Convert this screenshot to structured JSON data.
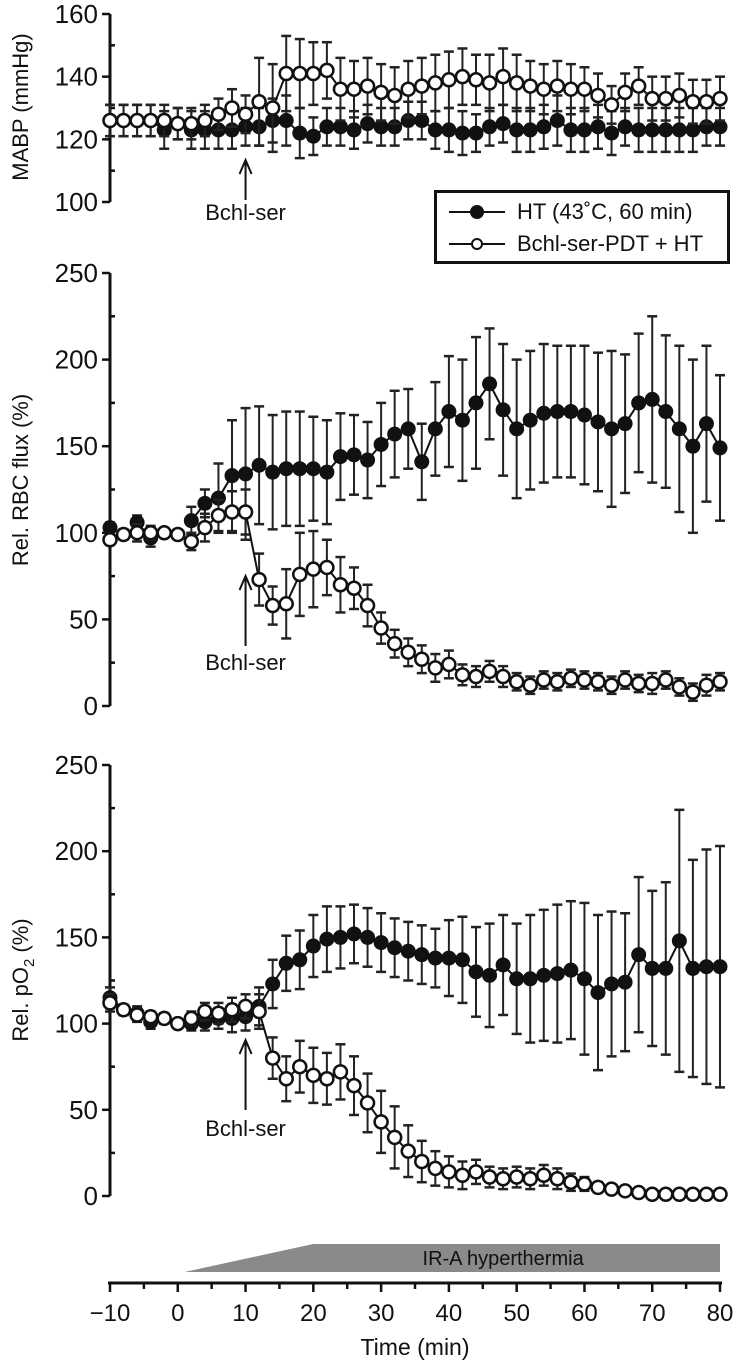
{
  "figure": {
    "x_axis_label": "Time (min)",
    "x_ticks": [
      "−10",
      "0",
      "10",
      "20",
      "30",
      "40",
      "50",
      "60",
      "70",
      "80"
    ],
    "hyperthermia_bar_label": "IR-A hyperthermia",
    "annotation": "Bchl-ser",
    "legend": {
      "series_ht": "HT (43˚C, 60 min)",
      "series_pdt": "Bchl-ser-PDT + HT"
    },
    "panels": [
      {
        "ylabel": "MABP (mmHg)",
        "ticks": [
          "160",
          "140",
          "120",
          "100"
        ]
      },
      {
        "ylabel": "Rel. RBC flux (%)",
        "ticks": [
          "250",
          "200",
          "150",
          "100",
          "50",
          "0"
        ]
      },
      {
        "ylabel_main": "Rel. pO",
        "ylabel_sub": "2",
        "ylabel_tail": " (%)",
        "ticks": [
          "250",
          "200",
          "150",
          "100",
          "50",
          "0"
        ]
      }
    ]
  },
  "chart_data": [
    {
      "type": "line",
      "title": "",
      "xlabel": "Time (min)",
      "ylabel": "MABP (mmHg)",
      "ylim": [
        100,
        160
      ],
      "xlim": [
        -10,
        80
      ],
      "grid": false,
      "legend_position": "lower right",
      "annotations": [
        {
          "text": "Bchl-ser",
          "x": 10,
          "type": "arrow"
        }
      ],
      "x": [
        -10,
        -8,
        -6,
        -4,
        -2,
        0,
        2,
        4,
        6,
        8,
        10,
        12,
        14,
        16,
        18,
        20,
        22,
        24,
        26,
        28,
        30,
        32,
        34,
        36,
        38,
        40,
        42,
        44,
        46,
        48,
        50,
        52,
        54,
        56,
        58,
        60,
        62,
        64,
        66,
        68,
        70,
        72,
        74,
        76,
        78,
        80
      ],
      "series": [
        {
          "name": "HT (43˚C, 60 min)",
          "marker": "filled-circle",
          "values": [
            126,
            126,
            126,
            126,
            123,
            125,
            123,
            123,
            123,
            123,
            124,
            124,
            126,
            126,
            122,
            121,
            124,
            124,
            123,
            125,
            124,
            124,
            126,
            126,
            123,
            123,
            122,
            122,
            124,
            125,
            123,
            123,
            124,
            126,
            123,
            123,
            124,
            122,
            124,
            123,
            123,
            123,
            123,
            123,
            124,
            124
          ],
          "error": [
            5,
            5,
            5,
            5,
            6,
            5,
            6,
            6,
            6,
            6,
            6,
            6,
            7,
            8,
            8,
            6,
            6,
            6,
            6,
            6,
            6,
            6,
            6,
            6,
            6,
            7,
            7,
            6,
            6,
            6,
            7,
            7,
            7,
            8,
            7,
            7,
            7,
            7,
            6,
            7,
            7,
            7,
            7,
            7,
            6,
            6
          ]
        },
        {
          "name": "Bchl-ser-PDT + HT",
          "marker": "open-circle",
          "values": [
            126,
            126,
            126,
            126,
            126,
            125,
            125,
            126,
            128,
            130,
            128,
            132,
            130,
            141,
            141,
            141,
            142,
            136,
            136,
            137,
            135,
            134,
            136,
            137,
            138,
            139,
            140,
            139,
            138,
            140,
            138,
            137,
            136,
            137,
            136,
            136,
            134,
            131,
            135,
            137,
            133,
            133,
            134,
            132,
            132,
            133
          ],
          "error": [
            5,
            5,
            5,
            5,
            5,
            5,
            5,
            5,
            5,
            6,
            6,
            14,
            14,
            12,
            11,
            10,
            9,
            10,
            9,
            9,
            9,
            9,
            9,
            9,
            9,
            9,
            9,
            8,
            9,
            9,
            9,
            8,
            8,
            8,
            8,
            7,
            7,
            6,
            6,
            6,
            7,
            7,
            7,
            7,
            7,
            7
          ]
        }
      ]
    },
    {
      "type": "line",
      "title": "",
      "xlabel": "Time (min)",
      "ylabel": "Rel. RBC flux (%)",
      "ylim": [
        0,
        250
      ],
      "xlim": [
        -10,
        80
      ],
      "grid": false,
      "annotations": [
        {
          "text": "Bchl-ser",
          "x": 10,
          "type": "arrow"
        }
      ],
      "x": [
        -10,
        -8,
        -6,
        -4,
        -2,
        0,
        2,
        4,
        6,
        8,
        10,
        12,
        14,
        16,
        18,
        20,
        22,
        24,
        26,
        28,
        30,
        32,
        34,
        36,
        38,
        40,
        42,
        44,
        46,
        48,
        50,
        52,
        54,
        56,
        58,
        60,
        62,
        64,
        66,
        68,
        70,
        72,
        74,
        76,
        78,
        80
      ],
      "series": [
        {
          "name": "HT (43˚C, 60 min)",
          "marker": "filled-circle",
          "values": [
            103,
            null,
            106,
            97,
            null,
            null,
            107,
            117,
            120,
            133,
            134,
            139,
            135,
            137,
            137,
            137,
            135,
            144,
            145,
            142,
            151,
            157,
            160,
            141,
            160,
            170,
            165,
            175,
            186,
            171,
            160,
            165,
            169,
            170,
            170,
            168,
            164,
            160,
            163,
            175,
            177,
            170,
            160,
            150,
            163,
            149
          ],
          "error": [
            3,
            null,
            4,
            5,
            null,
            null,
            8,
            8,
            20,
            32,
            38,
            34,
            33,
            33,
            33,
            30,
            30,
            25,
            23,
            22,
            24,
            25,
            23,
            22,
            27,
            32,
            35,
            38,
            32,
            38,
            40,
            40,
            40,
            38,
            38,
            40,
            40,
            45,
            40,
            40,
            48,
            44,
            48,
            50,
            45,
            42
          ]
        },
        {
          "name": "Bchl-ser-PDT + HT",
          "marker": "open-circle",
          "values": [
            96,
            99,
            100,
            100,
            100,
            99,
            95,
            103,
            110,
            112,
            112,
            73,
            58,
            59,
            76,
            79,
            80,
            70,
            68,
            58,
            45,
            36,
            31,
            27,
            22,
            24,
            18,
            17,
            20,
            17,
            14,
            12,
            15,
            14,
            16,
            15,
            14,
            12,
            15,
            13,
            13,
            15,
            11,
            8,
            12,
            14
          ],
          "error": [
            3,
            3,
            5,
            4,
            2,
            2,
            5,
            8,
            9,
            12,
            13,
            15,
            11,
            20,
            24,
            22,
            16,
            16,
            12,
            12,
            9,
            8,
            8,
            8,
            8,
            8,
            6,
            6,
            6,
            6,
            5,
            5,
            5,
            5,
            5,
            5,
            5,
            5,
            5,
            5,
            6,
            5,
            5,
            5,
            6,
            5
          ]
        }
      ]
    },
    {
      "type": "line",
      "title": "",
      "xlabel": "Time (min)",
      "ylabel": "Rel. pO2 (%)",
      "ylim": [
        0,
        250
      ],
      "xlim": [
        -10,
        80
      ],
      "grid": false,
      "annotations": [
        {
          "text": "Bchl-ser",
          "x": 10,
          "type": "arrow"
        }
      ],
      "x": [
        -10,
        -8,
        -6,
        -4,
        -2,
        0,
        2,
        4,
        6,
        8,
        10,
        12,
        14,
        16,
        18,
        20,
        22,
        24,
        26,
        28,
        30,
        32,
        34,
        36,
        38,
        40,
        42,
        44,
        46,
        48,
        50,
        52,
        54,
        56,
        58,
        60,
        62,
        64,
        66,
        68,
        70,
        72,
        74,
        76,
        78,
        80
      ],
      "series": [
        {
          "name": "HT (43˚C, 60 min)",
          "marker": "filled-circle",
          "values": [
            115,
            108,
            106,
            101,
            103,
            100,
            100,
            101,
            103,
            103,
            104,
            110,
            123,
            135,
            137,
            145,
            149,
            150,
            152,
            150,
            147,
            144,
            142,
            140,
            138,
            138,
            137,
            130,
            128,
            134,
            126,
            126,
            128,
            129,
            131,
            126,
            118,
            123,
            124,
            140,
            132,
            132,
            148,
            132,
            133,
            133
          ],
          "error": [
            6,
            3,
            4,
            4,
            3,
            2,
            4,
            5,
            6,
            8,
            8,
            11,
            14,
            16,
            17,
            18,
            19,
            18,
            17,
            17,
            17,
            17,
            17,
            17,
            17,
            22,
            25,
            26,
            30,
            29,
            32,
            37,
            38,
            40,
            40,
            44,
            45,
            42,
            40,
            45,
            45,
            50,
            76,
            63,
            68,
            70
          ]
        },
        {
          "name": "Bchl-ser-PDT + HT",
          "marker": "open-circle",
          "values": [
            112,
            108,
            105,
            104,
            103,
            100,
            103,
            107,
            106,
            108,
            110,
            107,
            80,
            68,
            75,
            70,
            68,
            72,
            64,
            54,
            43,
            34,
            26,
            20,
            16,
            14,
            12,
            14,
            11,
            10,
            11,
            10,
            12,
            10,
            8,
            7,
            5,
            4,
            3,
            2,
            1,
            1,
            1,
            1,
            1,
            1
          ],
          "error": [
            5,
            3,
            4,
            3,
            3,
            2,
            4,
            5,
            6,
            7,
            7,
            10,
            12,
            13,
            15,
            16,
            15,
            16,
            17,
            17,
            18,
            18,
            15,
            12,
            10,
            9,
            8,
            7,
            6,
            6,
            6,
            6,
            6,
            6,
            5,
            4,
            3,
            2,
            1,
            1,
            1,
            1,
            1,
            1,
            1,
            1
          ]
        }
      ]
    }
  ]
}
